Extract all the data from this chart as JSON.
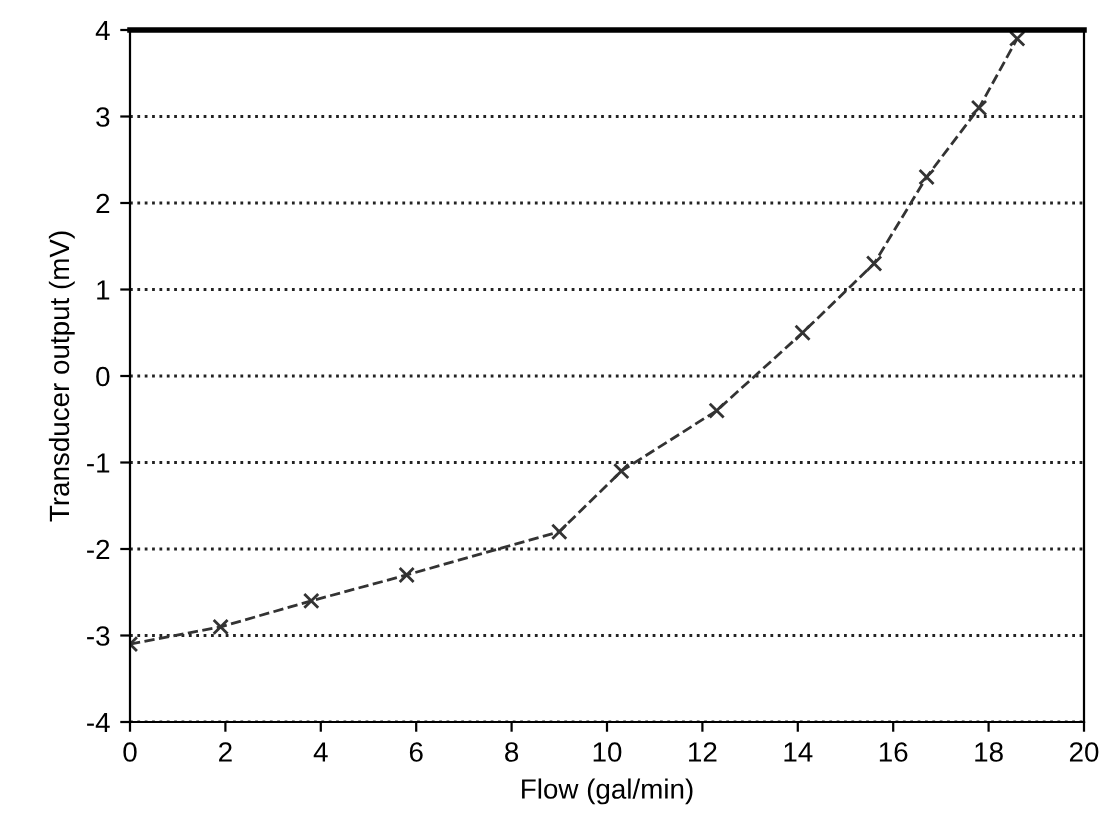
{
  "chart_data": {
    "type": "line",
    "xlabel": "Flow (gal/min)",
    "ylabel": "Transducer output (mV)",
    "x": [
      0,
      1.9,
      3.8,
      5.8,
      9.0,
      10.3,
      12.3,
      14.1,
      15.6,
      16.7,
      17.8,
      18.6
    ],
    "series": [
      {
        "color": "#333333",
        "values": [
          -3.1,
          -2.9,
          -2.6,
          -2.3,
          -1.8,
          -1.1,
          -0.4,
          0.5,
          1.3,
          2.3,
          3.1,
          3.9
        ]
      }
    ],
    "xlim": [
      0,
      20
    ],
    "ylim": [
      -4,
      4
    ],
    "xticks": [
      0,
      2,
      4,
      6,
      8,
      10,
      12,
      14,
      16,
      18,
      20
    ],
    "yticks": [
      -4,
      -3,
      -2,
      -1,
      0,
      1,
      2,
      3,
      4
    ],
    "grid": "y",
    "marker": "cross",
    "line_style": "dashed"
  }
}
